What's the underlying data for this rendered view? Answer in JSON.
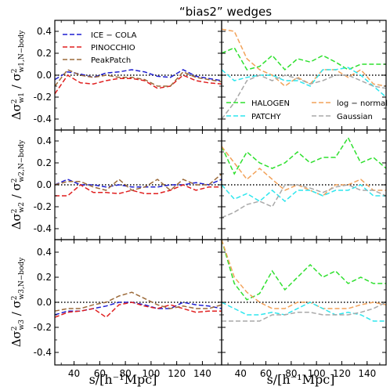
{
  "title": "“bias2” wedges",
  "xlabel": "s/[h⁻¹Mpc]",
  "ylabels": [
    "Δσ²w1 / σ²w1,N−body",
    "Δσ²w2 / σ²w2,N−body",
    "Δσ²w3 / σ²w3,N−body"
  ],
  "ylabel_parts": [
    {
      "num": "Δσ",
      "numsub": "w1",
      "den": "σ",
      "densub": "w1,N−body"
    },
    {
      "num": "Δσ",
      "numsub": "w2",
      "den": "σ",
      "densub": "w2,N−body"
    },
    {
      "num": "Δσ",
      "numsub": "w3",
      "den": "σ",
      "densub": "w3,N−body"
    }
  ],
  "colors": {
    "ICE − COLA": "#1f1fd0",
    "PINOCCHIO": "#e01f1f",
    "PeakPatch": "#9c6a3a",
    "HALOGEN": "#2fe02f",
    "PATCHY": "#2fe6ee",
    "log − normal": "#f2a25a",
    "Gaussian": "#a8a8a8"
  },
  "legend_left": [
    "ICE − COLA",
    "PINOCCHIO",
    "PeakPatch"
  ],
  "legend_right": [
    "HALOGEN",
    "log − normal",
    "PATCHY",
    "Gaussian"
  ],
  "chart_data": {
    "type": "line",
    "title": "“bias2” wedges",
    "xlabel": "s/[h⁻¹Mpc]",
    "xlim": [
      25,
      155
    ],
    "xticks": [
      40,
      60,
      80,
      100,
      120,
      140
    ],
    "ylim": [
      -0.5,
      0.5
    ],
    "yticks": [
      0.4,
      0.2,
      0.0,
      -0.2,
      -0.4
    ],
    "x": [
      25,
      35,
      45,
      55,
      65,
      75,
      85,
      95,
      105,
      115,
      125,
      135,
      145,
      155
    ],
    "panels": [
      {
        "row": 1,
        "column": "left",
        "series": [
          {
            "name": "ICE − COLA",
            "values": [
              -0.04,
              0.03,
              0.01,
              -0.02,
              0.02,
              0.03,
              0.05,
              0.03,
              -0.01,
              -0.02,
              0.05,
              -0.01,
              -0.03,
              -0.05
            ]
          },
          {
            "name": "PINOCCHIO",
            "values": [
              -0.17,
              0.0,
              -0.07,
              -0.08,
              -0.05,
              -0.03,
              -0.03,
              -0.05,
              -0.12,
              -0.1,
              0.0,
              -0.05,
              -0.07,
              -0.08
            ]
          },
          {
            "name": "PeakPatch",
            "values": [
              -0.1,
              0.05,
              0.0,
              -0.02,
              0.0,
              -0.02,
              -0.02,
              -0.04,
              -0.1,
              -0.1,
              0.03,
              -0.02,
              -0.04,
              -0.06
            ]
          }
        ]
      },
      {
        "row": 1,
        "column": "right",
        "series": [
          {
            "name": "HALOGEN",
            "values": [
              0.2,
              0.25,
              0.05,
              0.08,
              0.18,
              0.05,
              0.15,
              0.12,
              0.18,
              0.12,
              0.05,
              0.1,
              0.1,
              0.1
            ]
          },
          {
            "name": "log − normal",
            "values": [
              0.42,
              0.4,
              0.15,
              0.05,
              0.0,
              -0.1,
              -0.02,
              -0.08,
              0.05,
              0.05,
              -0.02,
              0.05,
              -0.08,
              -0.1
            ]
          },
          {
            "name": "PATCHY",
            "values": [
              0.05,
              -0.05,
              -0.02,
              0.0,
              0.0,
              -0.05,
              -0.05,
              -0.1,
              0.05,
              0.05,
              0.07,
              0.0,
              -0.1,
              -0.2
            ]
          },
          {
            "name": "Gaussian",
            "values": [
              -0.4,
              -0.25,
              -0.05,
              0.0,
              -0.05,
              0.0,
              -0.03,
              -0.08,
              -0.05,
              0.0,
              0.0,
              -0.05,
              -0.1,
              -0.12
            ]
          }
        ]
      },
      {
        "row": 2,
        "column": "left",
        "series": [
          {
            "name": "ICE − COLA",
            "values": [
              0.0,
              0.05,
              0.0,
              0.0,
              -0.02,
              0.0,
              -0.02,
              -0.02,
              -0.02,
              0.0,
              0.0,
              0.02,
              0.0,
              0.05
            ]
          },
          {
            "name": "PINOCCHIO",
            "values": [
              -0.1,
              -0.1,
              0.0,
              -0.07,
              -0.07,
              -0.08,
              -0.05,
              -0.08,
              -0.08,
              -0.05,
              0.0,
              -0.05,
              -0.02,
              -0.02
            ]
          },
          {
            "name": "PeakPatch",
            "values": [
              0.0,
              0.03,
              0.03,
              -0.02,
              -0.05,
              0.05,
              -0.05,
              -0.02,
              0.05,
              -0.05,
              0.05,
              0.0,
              0.0,
              0.1
            ]
          }
        ]
      },
      {
        "row": 2,
        "column": "right",
        "series": [
          {
            "name": "HALOGEN",
            "values": [
              0.35,
              0.1,
              0.3,
              0.2,
              0.15,
              0.2,
              0.3,
              0.2,
              0.25,
              0.25,
              0.43,
              0.2,
              0.25,
              0.15
            ]
          },
          {
            "name": "log − normal",
            "values": [
              0.35,
              0.2,
              0.05,
              0.15,
              0.05,
              -0.05,
              0.0,
              -0.05,
              -0.1,
              0.0,
              0.0,
              0.05,
              -0.05,
              -0.05
            ]
          },
          {
            "name": "PATCHY",
            "values": [
              0.0,
              -0.13,
              -0.08,
              -0.15,
              -0.05,
              -0.15,
              -0.05,
              -0.05,
              -0.1,
              -0.05,
              -0.05,
              0.0,
              -0.1,
              -0.1
            ]
          },
          {
            "name": "Gaussian",
            "values": [
              -0.3,
              -0.25,
              -0.18,
              -0.15,
              -0.2,
              0.0,
              0.0,
              -0.03,
              -0.07,
              -0.02,
              0.0,
              -0.05,
              -0.05,
              -0.1
            ]
          }
        ]
      },
      {
        "row": 3,
        "column": "left",
        "series": [
          {
            "name": "ICE − COLA",
            "values": [
              -0.1,
              -0.07,
              -0.07,
              -0.05,
              -0.03,
              0.0,
              0.0,
              -0.02,
              -0.05,
              -0.05,
              0.0,
              -0.02,
              -0.03,
              -0.05
            ]
          },
          {
            "name": "PINOCCHIO",
            "values": [
              -0.12,
              -0.08,
              -0.07,
              -0.05,
              -0.12,
              -0.02,
              0.0,
              -0.03,
              -0.05,
              -0.02,
              -0.05,
              -0.08,
              -0.07,
              -0.07
            ]
          },
          {
            "name": "PeakPatch",
            "values": [
              -0.07,
              -0.05,
              -0.05,
              -0.02,
              0.0,
              0.05,
              0.08,
              0.03,
              -0.02,
              -0.05,
              -0.03,
              -0.05,
              -0.05,
              -0.02
            ]
          }
        ]
      },
      {
        "row": 3,
        "column": "right",
        "series": [
          {
            "name": "HALOGEN",
            "values": [
              0.5,
              0.15,
              0.02,
              0.07,
              0.25,
              0.1,
              0.2,
              0.3,
              0.2,
              0.25,
              0.15,
              0.2,
              0.15,
              0.15
            ]
          },
          {
            "name": "log − normal",
            "values": [
              0.5,
              0.2,
              0.08,
              0.0,
              -0.05,
              -0.05,
              0.0,
              0.0,
              -0.05,
              -0.05,
              -0.05,
              -0.02,
              0.0,
              -0.02
            ]
          },
          {
            "name": "PATCHY",
            "values": [
              0.0,
              -0.05,
              -0.1,
              -0.1,
              -0.08,
              -0.1,
              -0.05,
              0.0,
              -0.05,
              -0.1,
              -0.08,
              -0.1,
              -0.15,
              -0.15
            ]
          },
          {
            "name": "Gaussian",
            "values": [
              -0.15,
              -0.15,
              -0.15,
              -0.15,
              -0.1,
              -0.1,
              -0.08,
              -0.08,
              -0.1,
              -0.1,
              -0.1,
              -0.08,
              -0.05,
              0.0
            ]
          }
        ]
      }
    ]
  }
}
